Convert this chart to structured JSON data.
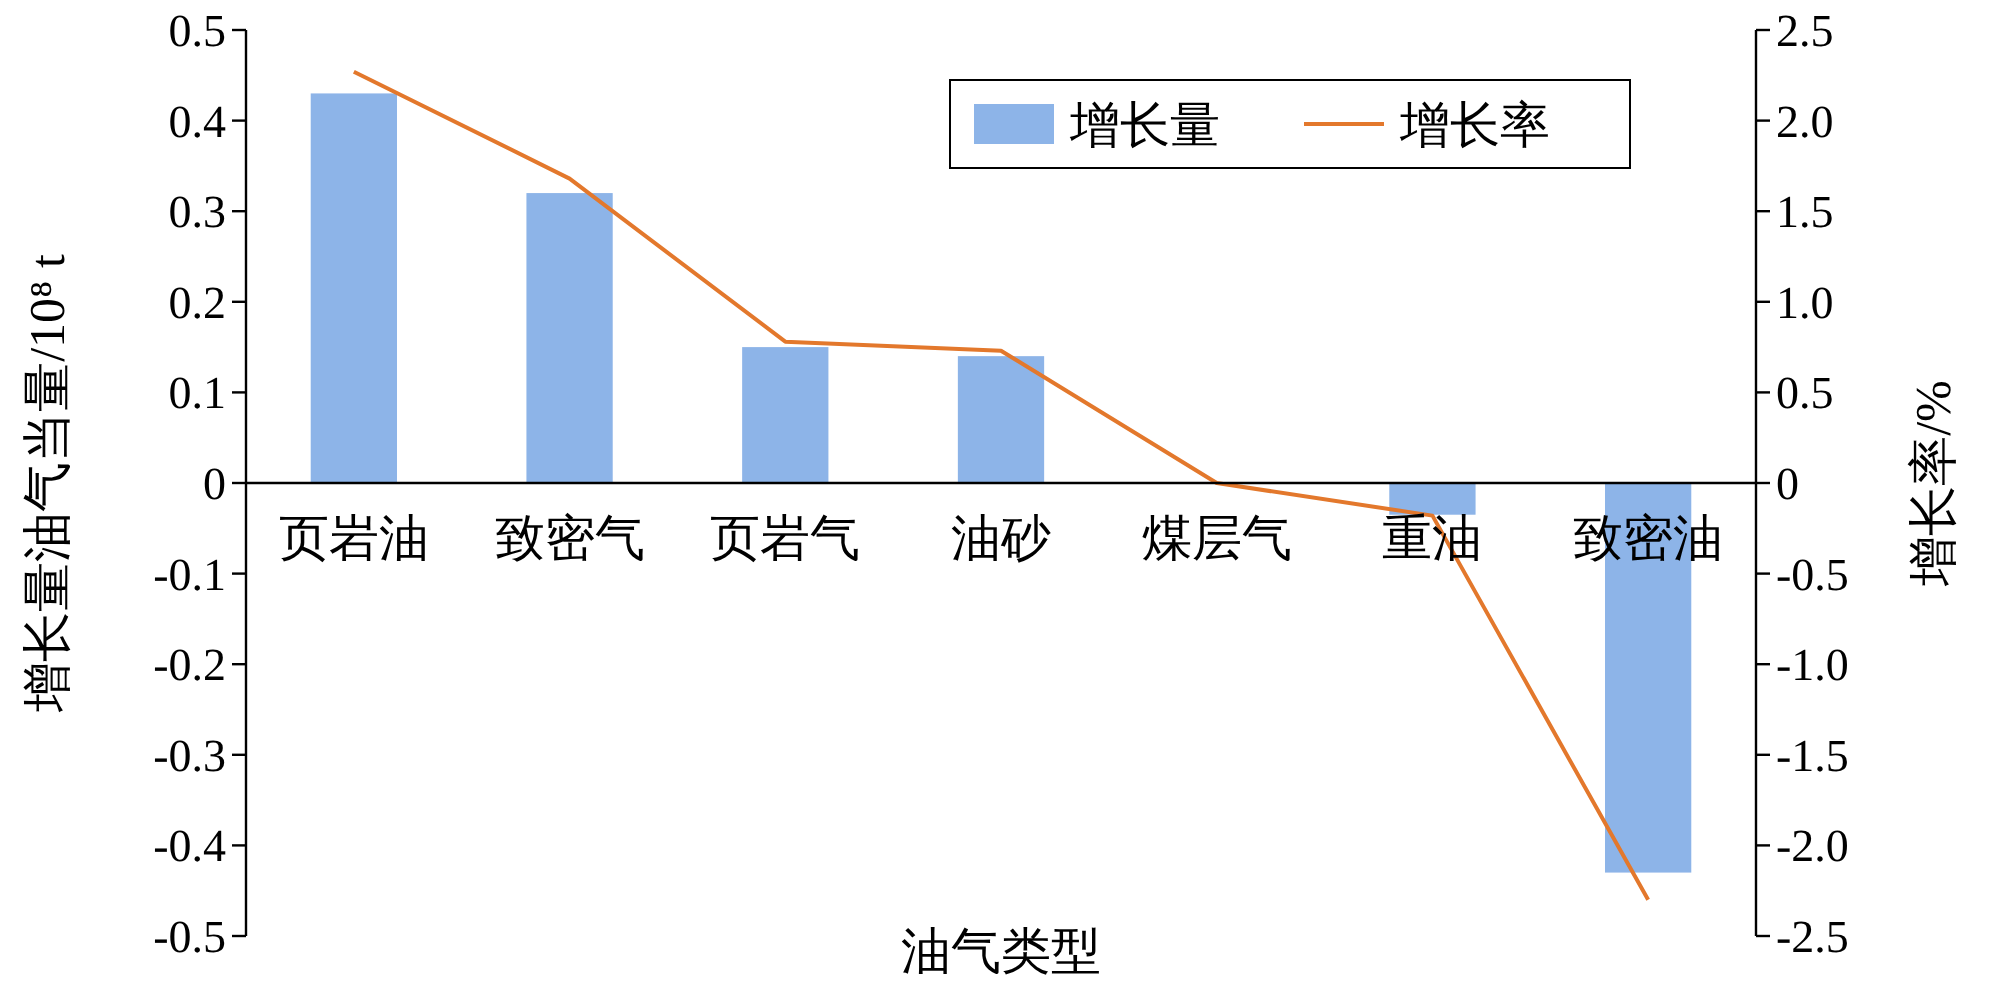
{
  "chart_data": {
    "type": "bar",
    "xlabel": "油气类型",
    "ylabel": "增长量油气当量/10⁸ t",
    "y2label": "增长率/%",
    "categories": [
      "页岩油",
      "致密气",
      "页岩气",
      "油砂",
      "煤层气",
      "重油",
      "致密油"
    ],
    "series": [
      {
        "name": "增长量",
        "color": "#8db4e8",
        "values": [
          0.43,
          0.32,
          0.15,
          0.14,
          0,
          -0.035,
          -0.43
        ]
      },
      {
        "name": "增长率",
        "type": "line",
        "axis": "y2",
        "color": "#e3782c",
        "values": [
          2.27,
          1.68,
          0.78,
          0.73,
          0,
          -0.18,
          -2.3
        ]
      }
    ],
    "ylim": [
      -0.5,
      0.5
    ],
    "yticks": [
      -0.5,
      -0.4,
      -0.3,
      -0.2,
      -0.1,
      0,
      0.1,
      0.2,
      0.3,
      0.4,
      0.5
    ],
    "y2lim": [
      -2.5,
      2.5
    ],
    "y2ticks": [
      {
        "value": -2.5,
        "label": "-2.5"
      },
      {
        "value": -2,
        "label": "-2.0"
      },
      {
        "value": -1.5,
        "label": "-1.5"
      },
      {
        "value": -1,
        "label": "-1.0"
      },
      {
        "value": -0.5,
        "label": "-0.5"
      },
      {
        "value": 0,
        "label": "0"
      },
      {
        "value": 0.5,
        "label": "0.5"
      },
      {
        "value": 1,
        "label": "1.0"
      },
      {
        "value": 1.5,
        "label": "1.5"
      },
      {
        "value": 2,
        "label": "2.0"
      },
      {
        "value": 2.5,
        "label": "2.5"
      }
    ],
    "legend": "top right",
    "grid": false
  }
}
